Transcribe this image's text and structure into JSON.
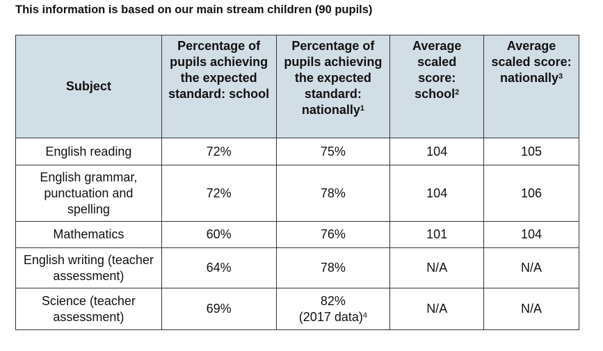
{
  "title": "This information is based on our main stream children (90 pupils)",
  "headers": [
    {
      "text": "Subject",
      "sup": ""
    },
    {
      "text": "Percentage of pupils achieving the expected standard: school",
      "sup": ""
    },
    {
      "text": "Percentage of pupils achieving the expected standard: nationally",
      "sup": "1"
    },
    {
      "text": "Average scaled score: school",
      "sup": "2"
    },
    {
      "text": "Average scaled score: nationally",
      "sup": "3"
    }
  ],
  "rows": [
    {
      "subject": "English reading",
      "school_pct": "72%",
      "national_pct": "75%",
      "national_note": "",
      "sup": "",
      "school_score": "104",
      "national_score": "105"
    },
    {
      "subject": "English grammar, punctuation and spelling",
      "school_pct": "72%",
      "national_pct": "78%",
      "national_note": "",
      "sup": "",
      "school_score": "104",
      "national_score": "106"
    },
    {
      "subject": "Mathematics",
      "school_pct": "60%",
      "national_pct": "76%",
      "national_note": "",
      "sup": "",
      "school_score": "101",
      "national_score": "104"
    },
    {
      "subject": "English writing (teacher assessment)",
      "school_pct": "64%",
      "national_pct": "78%",
      "national_note": "",
      "sup": "",
      "school_score": "N/A",
      "national_score": "N/A"
    },
    {
      "subject": "Science (teacher assessment)",
      "school_pct": "69%",
      "national_pct": "82%",
      "national_note": "(2017 data)",
      "sup": "4",
      "school_score": "N/A",
      "national_score": "N/A"
    }
  ]
}
